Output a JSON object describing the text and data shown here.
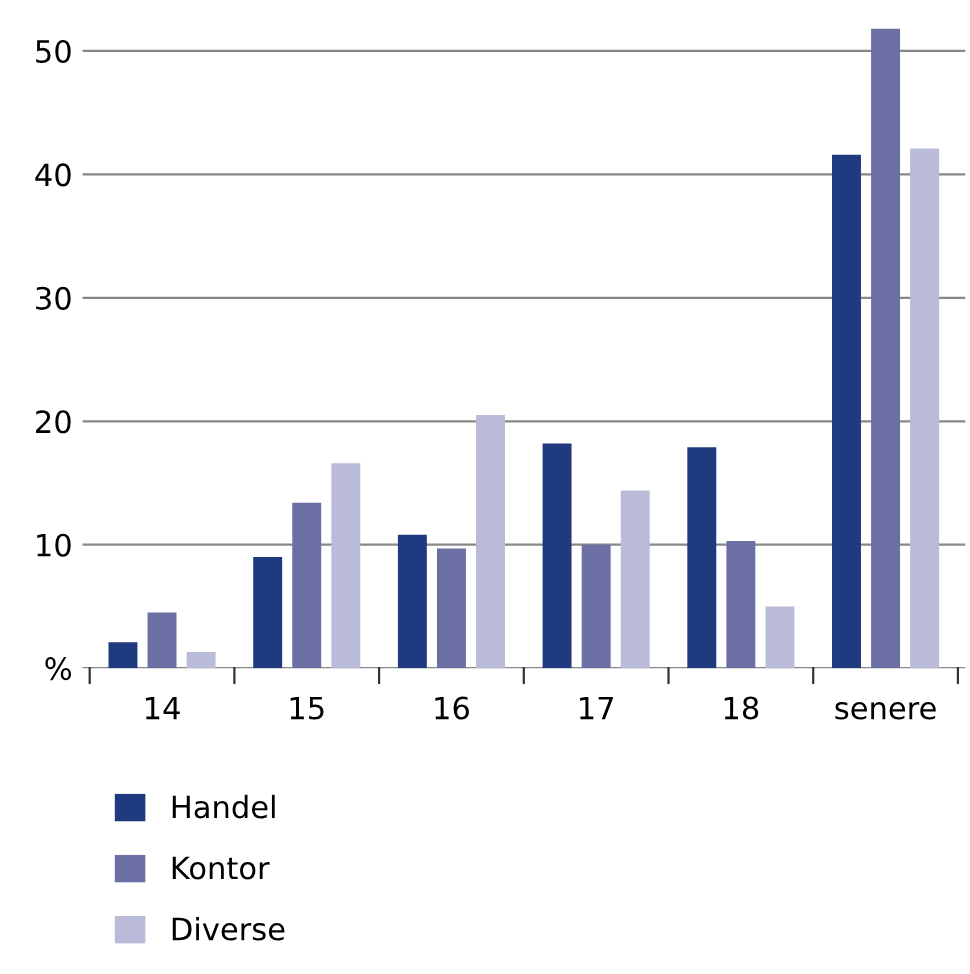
{
  "chart_data": {
    "type": "bar",
    "categories": [
      "14",
      "15",
      "16",
      "17",
      "18",
      "senere"
    ],
    "series": [
      {
        "name": "Handel",
        "color": "#1f3a7f",
        "values": [
          2.1,
          9.0,
          10.8,
          18.2,
          17.9,
          41.6
        ]
      },
      {
        "name": "Kontor",
        "color": "#6b6fa3",
        "values": [
          4.5,
          13.4,
          9.7,
          10.0,
          10.3,
          51.8
        ]
      },
      {
        "name": "Diverse",
        "color": "#b9bbd8",
        "values": [
          1.3,
          16.6,
          20.5,
          14.4,
          5.0,
          42.1
        ]
      }
    ],
    "ylim": [
      0,
      52
    ],
    "yticks": [
      {
        "value": 0,
        "label": "%"
      },
      10,
      20,
      30,
      40,
      50
    ],
    "grid": "y",
    "legend": "bottom"
  }
}
